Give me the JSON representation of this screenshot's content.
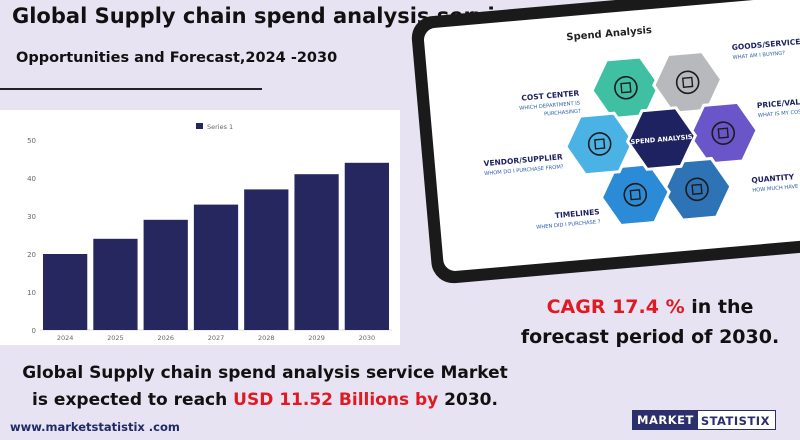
{
  "header": {
    "title": "Global Supply chain spend analysis service Market",
    "subtitle": "Opportunities and Forecast,2024 -2030"
  },
  "chart_data": {
    "type": "bar",
    "categories": [
      "2024",
      "2025",
      "2026",
      "2027",
      "2028",
      "2029",
      "2030"
    ],
    "series": [
      {
        "name": "Series 1",
        "values": [
          20,
          24,
          29,
          33,
          37,
          41,
          44
        ]
      }
    ],
    "title": "",
    "xlabel": "",
    "ylabel": "",
    "ylim": [
      0,
      50
    ],
    "yticks": [
      "0",
      "10",
      "20",
      "30",
      "40",
      "50"
    ],
    "grid": false,
    "legend": "top-center",
    "bar_color": "#27275f"
  },
  "infographic": {
    "title": "Spend Analysis",
    "center_label": "SPEND ANALYSIS",
    "nodes": [
      {
        "id": "cost-center",
        "label": "COST CENTER",
        "question": [
          "WHICH DEPARTMENT IS",
          "PURCHASING?"
        ],
        "icon": "flowchart-icon",
        "color": "#3fc0a3"
      },
      {
        "id": "goods-services",
        "label": "GOODS/SERVICES",
        "question": [
          "WHAT AM I BUYING?"
        ],
        "icon": "magnifier-icon",
        "color": "#b7b9bc"
      },
      {
        "id": "price-value",
        "label": "PRICE/VALUE",
        "question": [
          "WHAT IS MY COS"
        ],
        "icon": "currency-icon",
        "color": "#6a56c8"
      },
      {
        "id": "quantity",
        "label": "QUANTITY",
        "question": [
          "HOW MUCH HAVE I PU"
        ],
        "icon": "report-icon",
        "color": "#2e73b5"
      },
      {
        "id": "timelines",
        "label": "TIMELINES",
        "question": [
          "WHEN DID I PURCHASE ?"
        ],
        "icon": "calendar-icon",
        "color": "#2c8bd6"
      },
      {
        "id": "vendor-supplier",
        "label": "VENDOR/SUPPLIER",
        "question": [
          "WHOM DO I PURCHASE FROM?"
        ],
        "icon": "vendor-icon",
        "color": "#4bb2e6"
      }
    ],
    "center_color": "#1e2260"
  },
  "cagr": {
    "prefix": "CAGR  17.4 %",
    "middle": " in the",
    "line2": "forecast period of 2030."
  },
  "bottom": {
    "line1": "Global Supply chain spend analysis service Market",
    "line2_a": "is expected to reach ",
    "line2_b": "USD 11.52 Billions by",
    "line2_c": " 2030."
  },
  "footer": {
    "website": "www.marketstatistix .com",
    "logo_a": "MARKET",
    "logo_b": "STATISTIX"
  },
  "colors": {
    "accent_red": "#e01a22",
    "navy": "#27275f",
    "background": "#e7e3f2"
  }
}
